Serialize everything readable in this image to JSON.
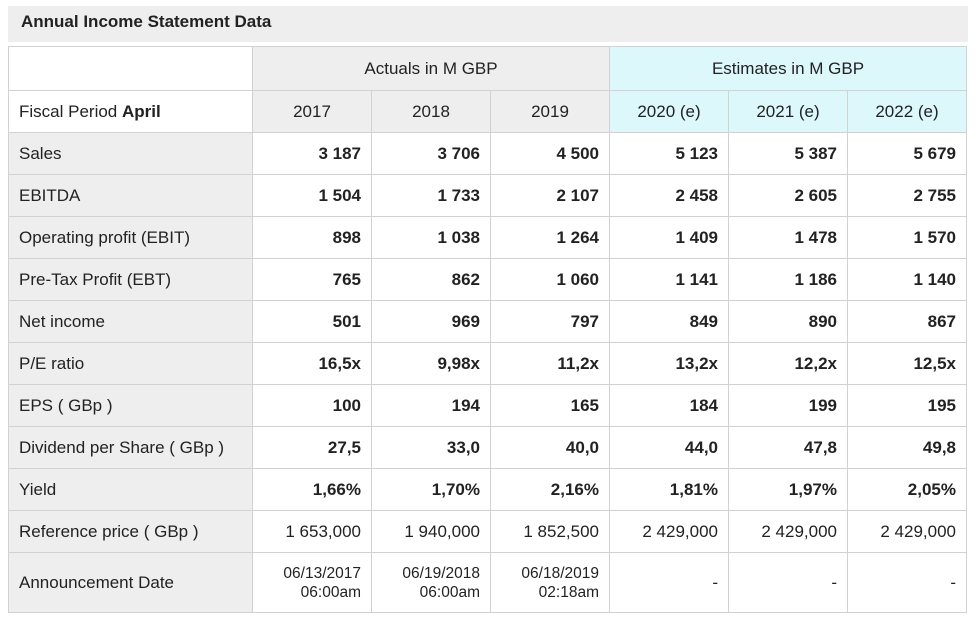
{
  "title": "Annual Income Statement Data",
  "header": {
    "actuals": "Actuals in M GBP",
    "estimates": "Estimates in M GBP",
    "period_prefix": "Fiscal Period",
    "period_month": "April",
    "years": [
      "2017",
      "2018",
      "2019",
      "2020 (e)",
      "2021 (e)",
      "2022 (e)"
    ]
  },
  "rows": [
    {
      "label": "Sales",
      "values": [
        "3 187",
        "3 706",
        "4 500",
        "5 123",
        "5 387",
        "5 679"
      ]
    },
    {
      "label": "EBITDA",
      "values": [
        "1 504",
        "1 733",
        "2 107",
        "2 458",
        "2 605",
        "2 755"
      ]
    },
    {
      "label": "Operating profit (EBIT)",
      "values": [
        "898",
        "1 038",
        "1 264",
        "1 409",
        "1 478",
        "1 570"
      ]
    },
    {
      "label": "Pre-Tax Profit (EBT)",
      "values": [
        "765",
        "862",
        "1 060",
        "1 141",
        "1 186",
        "1 140"
      ]
    },
    {
      "label": "Net income",
      "values": [
        "501",
        "969",
        "797",
        "849",
        "890",
        "867"
      ]
    },
    {
      "label": "P/E ratio",
      "values": [
        "16,5x",
        "9,98x",
        "11,2x",
        "13,2x",
        "12,2x",
        "12,5x"
      ]
    },
    {
      "label": "EPS ( GBp )",
      "values": [
        "100",
        "194",
        "165",
        "184",
        "199",
        "195"
      ]
    },
    {
      "label": "Dividend per Share ( GBp )",
      "values": [
        "27,5",
        "33,0",
        "40,0",
        "44,0",
        "47,8",
        "49,8"
      ]
    },
    {
      "label": "Yield",
      "values": [
        "1,66%",
        "1,70%",
        "2,16%",
        "1,81%",
        "1,97%",
        "2,05%"
      ]
    },
    {
      "label": "Reference price ( GBp )",
      "values": [
        "1 653,000",
        "1 940,000",
        "1 852,500",
        "2 429,000",
        "2 429,000",
        "2 429,000"
      ]
    }
  ],
  "announcement": {
    "label": "Announcement Date",
    "dates": [
      {
        "date": "06/13/2017",
        "time": "06:00am"
      },
      {
        "date": "06/19/2018",
        "time": "06:00am"
      },
      {
        "date": "06/18/2019",
        "time": "02:18am"
      }
    ],
    "estimate_placeholder": "-"
  },
  "colors": {
    "header_gray": "#eeeeee",
    "estimate_cyan": "#dcf8fa",
    "border": "#d2d2d2"
  }
}
